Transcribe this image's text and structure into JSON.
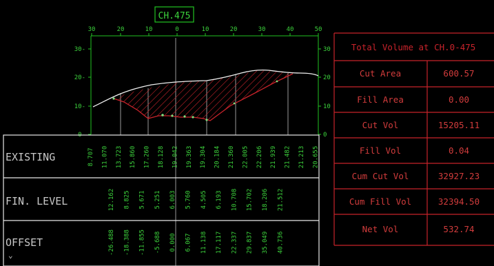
{
  "colors": {
    "background": "#000000",
    "grid_green": "#22c422",
    "label_green": "#3cd23c",
    "table_red": "#c8232b",
    "hatch_red": "#c8232b",
    "ground_white": "#f0f0f0",
    "frame_white": "#e8e8e8",
    "gray_line": "#9a9a9a"
  },
  "section": {
    "chainage_label": "CH.475",
    "x_ticks": [
      "30",
      "20",
      "10",
      "0",
      "10",
      "20",
      "30",
      "40",
      "50"
    ],
    "y_ticks_left": [
      "30",
      "20",
      "10",
      "0"
    ],
    "y_ticks_right": [
      "30",
      "20",
      "10",
      "0"
    ]
  },
  "band_rows": {
    "existing_label": "EXISTING",
    "fin_level_label": "FIN. LEVEL",
    "offset_label": "OFFSET",
    "existing_values": [
      "8.707",
      "11.070",
      "13.723",
      "15.860",
      "17.260",
      "18.128",
      "19.042",
      "19.363",
      "19.304",
      "20.184",
      "21.360",
      "22.005",
      "22.206",
      "21.939",
      "21.482",
      "21.213",
      "20.655"
    ],
    "fin_level_values": [
      "12.162",
      "8.825",
      "5.671",
      "5.251",
      "6.003",
      "5.760",
      "4.505",
      "6.193",
      "10.708",
      "15.702",
      "18.206",
      "21.512"
    ],
    "offset_values": [
      "-26.488",
      "-18.388",
      "-11.855",
      "-5.688",
      "0.000",
      "6.067",
      "11.138",
      "17.117",
      "22.337",
      "29.837",
      "35.049",
      "40.736"
    ]
  },
  "volume_table": {
    "title": "Total Volume at CH.0-475",
    "rows": [
      {
        "label": "Cut Area",
        "value": "600.57"
      },
      {
        "label": "Fill Area",
        "value": "0.00"
      },
      {
        "label": "Cut Vol",
        "value": "15205.11"
      },
      {
        "label": "Fill Vol",
        "value": "0.04"
      },
      {
        "label": "Cum Cut Vol",
        "value": "32927.23"
      },
      {
        "label": "Cum Fill Vol",
        "value": "32394.50"
      },
      {
        "label": "Net Vol",
        "value": "532.74"
      }
    ]
  }
}
